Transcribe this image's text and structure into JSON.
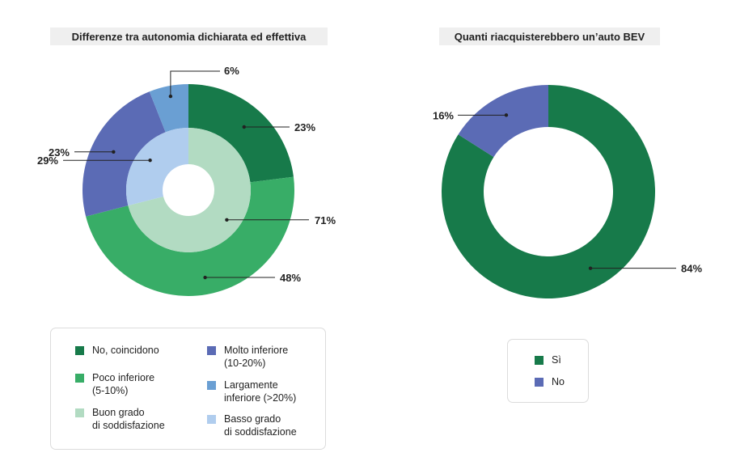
{
  "chart_data": [
    {
      "type": "pie",
      "subtype": "nested-donut",
      "title": "Differenze tra autonomia dichiarata ed effettiva",
      "outer_ring": {
        "slices": [
          {
            "label": "No, coincidono",
            "value": 23,
            "display": "23%",
            "color": "#177a4a"
          },
          {
            "label": "Poco inferiore (5-10%)",
            "value": 48,
            "display": "48%",
            "color": "#38ad67"
          },
          {
            "label": "Molto inferiore (10-20%)",
            "value": 23,
            "display": "23%",
            "color": "#5b6bb5"
          },
          {
            "label": "Largamente inferiore (>20%)",
            "value": 6,
            "display": "6%",
            "color": "#6a9fd3"
          }
        ]
      },
      "inner_ring": {
        "slices": [
          {
            "label": "Buon grado di soddisfazione",
            "value": 71,
            "display": "71%",
            "color": "#b2dbc2"
          },
          {
            "label": "Basso grado di soddisfazione",
            "value": 29,
            "display": "29%",
            "color": "#b0cdee"
          }
        ]
      },
      "legend": [
        {
          "label": "No, coincidono",
          "color": "#177a4a"
        },
        {
          "label": "Molto inferiore\n(10-20%)",
          "color": "#5b6bb5"
        },
        {
          "label": "Poco inferiore\n(5-10%)",
          "color": "#38ad67"
        },
        {
          "label": "Largamente\ninferiore (>20%)",
          "color": "#6a9fd3"
        },
        {
          "label": "Buon grado\ndi soddisfazione",
          "color": "#b2dbc2"
        },
        {
          "label": "Basso grado\ndi soddisfazione",
          "color": "#b0cdee"
        }
      ]
    },
    {
      "type": "pie",
      "subtype": "donut",
      "title": "Quanti riacquisterebbero un’auto BEV",
      "slices": [
        {
          "label": "Sì",
          "value": 84,
          "display": "84%",
          "color": "#177a4a"
        },
        {
          "label": "No",
          "value": 16,
          "display": "16%",
          "color": "#5b6bb5"
        }
      ],
      "legend": [
        {
          "label": "Sì",
          "color": "#177a4a"
        },
        {
          "label": "No",
          "color": "#5b6bb5"
        }
      ]
    }
  ]
}
